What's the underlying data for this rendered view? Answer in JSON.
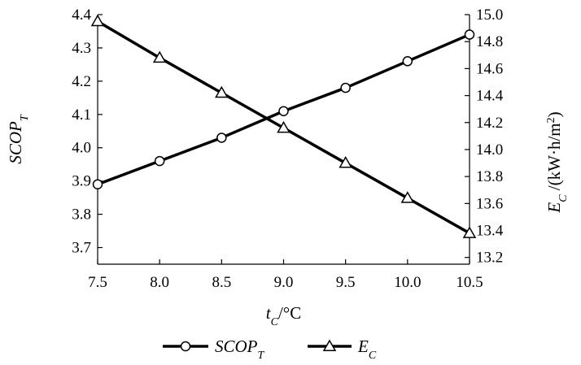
{
  "chart_data": {
    "type": "line",
    "x": [
      7.5,
      8.0,
      8.5,
      9.0,
      9.5,
      10.0,
      10.5
    ],
    "xlim": [
      7.5,
      10.5
    ],
    "xticks": [
      "7.5",
      "8.0",
      "8.5",
      "9.0",
      "9.5",
      "10.0",
      "10.5"
    ],
    "xlabel": {
      "main": "t",
      "sub": "C",
      "unit": "/°C"
    },
    "y_left": {
      "label": {
        "main": "SCOP",
        "sub": "T"
      },
      "lim": [
        3.65,
        4.4
      ],
      "ticks": [
        "3.7",
        "3.8",
        "3.9",
        "4.0",
        "4.1",
        "4.2",
        "4.3",
        "4.4"
      ]
    },
    "y_right": {
      "label": {
        "main": "E",
        "sub": "C",
        "unit_pre": " /(kW·h/m",
        "unit_sup": "2",
        "unit_post": ")"
      },
      "lim": [
        13.15,
        15.0
      ],
      "ticks": [
        "13.2",
        "13.4",
        "13.6",
        "13.8",
        "14.0",
        "14.2",
        "14.4",
        "14.6",
        "14.8",
        "15.0"
      ]
    },
    "series": [
      {
        "name": {
          "main": "SCOP",
          "sub": "T"
        },
        "axis": "left",
        "marker": "circle",
        "values": [
          3.89,
          3.96,
          4.03,
          4.11,
          4.18,
          4.26,
          4.34
        ]
      },
      {
        "name": {
          "main": "E",
          "sub": "C"
        },
        "axis": "right",
        "marker": "triangle",
        "values": [
          14.95,
          14.68,
          14.42,
          14.16,
          13.9,
          13.64,
          13.38
        ]
      }
    ],
    "grid": false,
    "legend_position": "bottom",
    "line_color": "#000000"
  }
}
